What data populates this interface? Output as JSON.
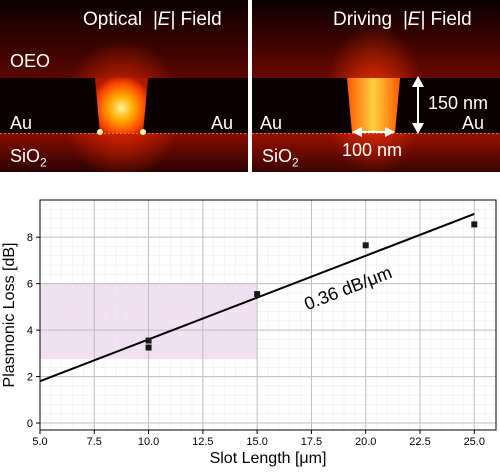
{
  "panels": {
    "left": {
      "title_prefix": "Optical",
      "title_field": "|E|",
      "title_suffix": "Field",
      "top_medium": "OEO",
      "metal_left": "Au",
      "metal_right": "Au",
      "substrate": "SiO",
      "substrate_sub": "2"
    },
    "right": {
      "title_prefix": "Driving",
      "title_field": "|E|",
      "title_suffix": "Field",
      "metal_left": "Au",
      "metal_right": "Au",
      "substrate": "SiO",
      "substrate_sub": "2",
      "height_label": "150 nm",
      "gap_label": "100 nm"
    }
  },
  "chart_data": {
    "type": "scatter",
    "xlabel": "Slot Length [μm]",
    "ylabel": "Plasmonic Loss [dB]",
    "xlim": [
      5.0,
      26.0
    ],
    "ylim": [
      -0.3,
      9.6
    ],
    "xticks": [
      "5.0",
      "7.5",
      "10.0",
      "12.5",
      "15.0",
      "17.5",
      "20.0",
      "22.5",
      "25.0"
    ],
    "yticks": [
      "0",
      "2",
      "4",
      "6",
      "8"
    ],
    "grid": true,
    "points": [
      {
        "x": 10.0,
        "y": 3.55
      },
      {
        "x": 10.0,
        "y": 3.25
      },
      {
        "x": 15.0,
        "y": 5.55
      },
      {
        "x": 20.0,
        "y": 7.65
      },
      {
        "x": 25.0,
        "y": 8.55
      }
    ],
    "fit_line": {
      "x": [
        5.0,
        25.0
      ],
      "y": [
        1.8,
        9.0
      ],
      "label": "0.36 dB/μm"
    },
    "highlight_region": {
      "x": [
        5.0,
        15.0
      ],
      "y": [
        2.75,
        6.0
      ],
      "color": "#f1e0f1"
    },
    "marker_color": "#1a1a1a",
    "line_color": "#000000"
  }
}
